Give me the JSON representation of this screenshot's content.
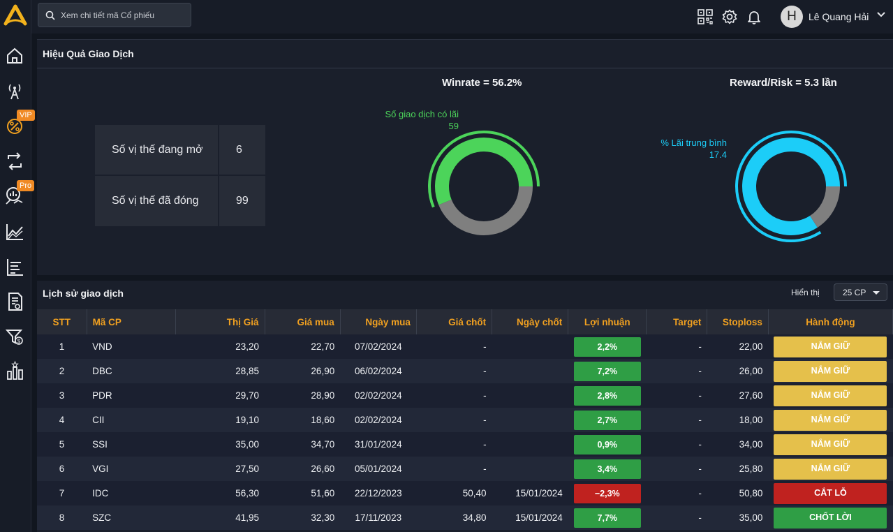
{
  "search": {
    "placeholder": "Xem chi tiết mã Cổ phiếu"
  },
  "sidebar": {
    "items": [
      {
        "name": "home-icon"
      },
      {
        "name": "signal-tower-icon"
      },
      {
        "name": "percent-icon",
        "badge": "VIP"
      },
      {
        "name": "refresh-icon"
      },
      {
        "name": "chart-search-icon",
        "badge": "Pro"
      },
      {
        "name": "line-chart-icon"
      },
      {
        "name": "list-chart-icon"
      },
      {
        "name": "document-icon"
      },
      {
        "name": "funnel-dollar-icon"
      },
      {
        "name": "bar-stats-icon"
      }
    ]
  },
  "user": {
    "initial": "H",
    "name": "Lê Quang Hải"
  },
  "performance": {
    "title": "Hiệu Quả Giao Dịch",
    "open_positions_label": "Số vị thế đang mở",
    "open_positions_value": "6",
    "closed_positions_label": "Số vị thế đã đóng",
    "closed_positions_value": "99",
    "winrate_title": "Winrate = 56.2%",
    "winrate_label": "Số giao dịch có lãi",
    "winrate_value": "59",
    "winrate_fraction": 0.562,
    "reward_title": "Reward/Risk = 5.3 lần",
    "reward_label": "% Lãi trung bình",
    "reward_value": "17.4",
    "reward_fraction": 0.841,
    "colors": {
      "green": "#4cd45a",
      "cyan": "#1ccdf8",
      "gray": "#7f7f7f"
    }
  },
  "history": {
    "title": "Lịch sử giao dịch",
    "show_label": "Hiển thị",
    "show_value": "25 CP",
    "columns": [
      "STT",
      "Mã CP",
      "Thị Giá",
      "Giá mua",
      "Ngày mua",
      "Giá chốt",
      "Ngày chốt",
      "Lợi nhuận",
      "Target",
      "Stoploss",
      "Hành động"
    ],
    "rows": [
      [
        "1",
        "VND",
        "23,20",
        "22,70",
        "07/02/2024",
        "-",
        "",
        "2,2%",
        "-",
        "22,00",
        "NẮM GIỮ"
      ],
      [
        "2",
        "DBC",
        "28,85",
        "26,90",
        "06/02/2024",
        "-",
        "",
        "7,2%",
        "-",
        "26,00",
        "NẮM GIỮ"
      ],
      [
        "3",
        "PDR",
        "29,70",
        "28,90",
        "02/02/2024",
        "-",
        "",
        "2,8%",
        "-",
        "27,60",
        "NẮM GIỮ"
      ],
      [
        "4",
        "CII",
        "19,10",
        "18,60",
        "02/02/2024",
        "-",
        "",
        "2,7%",
        "-",
        "18,00",
        "NẮM GIỮ"
      ],
      [
        "5",
        "SSI",
        "35,00",
        "34,70",
        "31/01/2024",
        "-",
        "",
        "0,9%",
        "-",
        "34,00",
        "NẮM GIỮ"
      ],
      [
        "6",
        "VGI",
        "27,50",
        "26,60",
        "05/01/2024",
        "-",
        "",
        "3,4%",
        "-",
        "25,80",
        "NẮM GIỮ"
      ],
      [
        "7",
        "IDC",
        "56,30",
        "51,60",
        "22/12/2023",
        "50,40",
        "15/01/2024",
        "−2,3%",
        "-",
        "50,80",
        "CẮT LỖ"
      ],
      [
        "8",
        "SZC",
        "41,95",
        "32,30",
        "17/11/2023",
        "34,80",
        "15/01/2024",
        "7,7%",
        "-",
        "35,00",
        "CHỐT LỜI"
      ]
    ],
    "pnl_colors": {
      "positive": "#2f9e45",
      "negative": "#c0221f"
    },
    "action_colors": {
      "NẮM GIỮ": "#e5c04b",
      "CẮT LỖ": "#c0221f",
      "CHỐT LỜI": "#2f9e45"
    }
  }
}
